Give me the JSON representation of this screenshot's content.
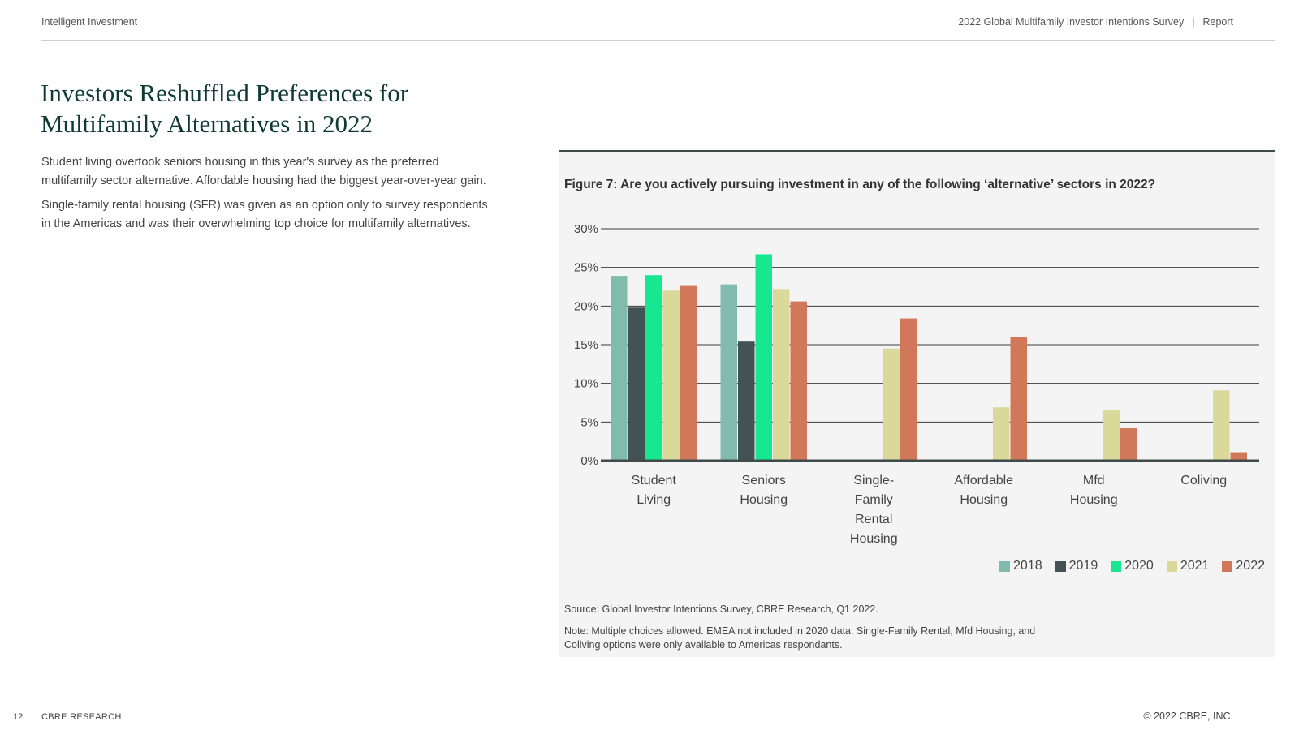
{
  "header": {
    "left": "Intelligent Investment",
    "report_title": "2022 Global Multifamily Investor Intentions Survey",
    "separator": "|",
    "report_label": "Report"
  },
  "page": {
    "title": "Investors Reshuffled Preferences for Multifamily Alternatives in 2022",
    "paragraphs": [
      "Student living overtook seniors housing in this year's survey as the preferred multifamily sector alternative. Affordable housing had the biggest year-over-year gain.",
      "Single-family rental housing (SFR) was given as an option only to survey respondents in the Americas and was their overwhelming top choice for multifamily alternatives."
    ]
  },
  "figure": {
    "title": "Figure 7: Are you actively pursuing investment in any of the following ‘alternative’ sectors in 2022?",
    "source": "Source: Global Investor Intentions Survey, CBRE Research, Q1 2022.",
    "note": "Note: Multiple choices allowed. EMEA not included in 2020 data. Single-Family Rental, Mfd Housing, and Coliving options were only available to Americas respondants."
  },
  "chart_data": {
    "type": "bar",
    "title": "Figure 7: Are you actively pursuing investment in any of the following ‘alternative’ sectors in 2022?",
    "xlabel": "",
    "ylabel": "",
    "ylim": [
      0,
      30
    ],
    "yticks": [
      "0%",
      "5%",
      "10%",
      "15%",
      "20%",
      "25%",
      "30%"
    ],
    "grid": true,
    "legend_position": "bottom-right",
    "categories": [
      [
        "Student",
        "Living"
      ],
      [
        "Seniors",
        "Housing"
      ],
      [
        "Single-",
        "Family",
        "Rental",
        "Housing"
      ],
      [
        "Affordable",
        "Housing"
      ],
      [
        "Mfd",
        "Housing"
      ],
      [
        "Coliving"
      ]
    ],
    "series": [
      {
        "name": "2018",
        "color": "#80bbad",
        "values": [
          23.9,
          22.8,
          null,
          null,
          null,
          null
        ]
      },
      {
        "name": "2019",
        "color": "#435254",
        "values": [
          19.8,
          15.4,
          null,
          null,
          null,
          null
        ]
      },
      {
        "name": "2020",
        "color": "#17e88f",
        "values": [
          24.0,
          26.7,
          null,
          null,
          null,
          null
        ]
      },
      {
        "name": "2021",
        "color": "#dbd99a",
        "values": [
          22.0,
          22.2,
          14.5,
          6.9,
          6.5,
          9.1
        ]
      },
      {
        "name": "2022",
        "color": "#d2785a",
        "values": [
          22.7,
          20.6,
          18.4,
          16.0,
          4.2,
          1.1
        ]
      }
    ]
  },
  "footer": {
    "page_number": "12",
    "left": "CBRE RESEARCH",
    "right": "© 2022 CBRE, INC."
  }
}
